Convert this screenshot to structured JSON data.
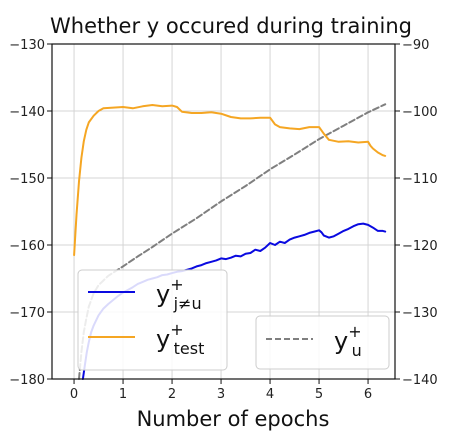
{
  "chart_data": {
    "type": "line",
    "title": "Whether y occured during training",
    "xlabel": "Number of epochs",
    "ylabel": "",
    "xlim": [
      -0.45,
      6.55
    ],
    "ylim_left": [
      -180,
      -130
    ],
    "ylim_right": [
      -140,
      -90
    ],
    "xticks": [
      0,
      1,
      2,
      3,
      4,
      5,
      6
    ],
    "yticks_left": [
      -180,
      -170,
      -160,
      -150,
      -140,
      -130
    ],
    "yticks_right": [
      -140,
      -130,
      -120,
      -110,
      -100,
      -90
    ],
    "grid": true,
    "colors": {
      "blue": "#0a0ae0",
      "orange": "#f5a623",
      "gray": "#7f7f7f"
    },
    "series": [
      {
        "name": "y_{j≠u}^+",
        "legend_main": "y",
        "legend_sub": "j≠u",
        "legend_sup": "+",
        "axis": "left",
        "style": "solid",
        "color": "#0a0ae0",
        "points": [
          [
            0.18,
            -180
          ],
          [
            0.22,
            -178
          ],
          [
            0.26,
            -176
          ],
          [
            0.3,
            -174.5
          ],
          [
            0.35,
            -173
          ],
          [
            0.4,
            -172
          ],
          [
            0.5,
            -170.5
          ],
          [
            0.6,
            -169.5
          ],
          [
            0.7,
            -168.8
          ],
          [
            0.8,
            -168.2
          ],
          [
            0.9,
            -167.6
          ],
          [
            1.0,
            -167.1
          ],
          [
            1.1,
            -166.7
          ],
          [
            1.2,
            -166.3
          ],
          [
            1.3,
            -165.8
          ],
          [
            1.4,
            -165.5
          ],
          [
            1.5,
            -165.2
          ],
          [
            1.6,
            -165.0
          ],
          [
            1.7,
            -164.8
          ],
          [
            1.8,
            -164.5
          ],
          [
            1.9,
            -164.4
          ],
          [
            2.0,
            -164.2
          ],
          [
            2.1,
            -164.0
          ],
          [
            2.2,
            -163.9
          ],
          [
            2.3,
            -163.7
          ],
          [
            2.4,
            -163.5
          ],
          [
            2.5,
            -163.2
          ],
          [
            2.6,
            -163.0
          ],
          [
            2.7,
            -162.7
          ],
          [
            2.8,
            -162.5
          ],
          [
            2.9,
            -162.3
          ],
          [
            3.0,
            -162.0
          ],
          [
            3.1,
            -162.1
          ],
          [
            3.2,
            -161.9
          ],
          [
            3.3,
            -161.6
          ],
          [
            3.4,
            -161.7
          ],
          [
            3.5,
            -161.3
          ],
          [
            3.6,
            -161.2
          ],
          [
            3.7,
            -160.7
          ],
          [
            3.8,
            -160.9
          ],
          [
            3.9,
            -160.4
          ],
          [
            4.0,
            -159.7
          ],
          [
            4.1,
            -160.0
          ],
          [
            4.2,
            -159.5
          ],
          [
            4.3,
            -159.7
          ],
          [
            4.4,
            -159.2
          ],
          [
            4.5,
            -158.9
          ],
          [
            4.6,
            -158.7
          ],
          [
            4.7,
            -158.5
          ],
          [
            4.8,
            -158.2
          ],
          [
            4.9,
            -158.0
          ],
          [
            5.0,
            -157.8
          ],
          [
            5.05,
            -158.1
          ],
          [
            5.1,
            -158.6
          ],
          [
            5.2,
            -158.9
          ],
          [
            5.3,
            -158.7
          ],
          [
            5.4,
            -158.3
          ],
          [
            5.5,
            -157.9
          ],
          [
            5.6,
            -157.6
          ],
          [
            5.7,
            -157.2
          ],
          [
            5.8,
            -156.9
          ],
          [
            5.9,
            -156.8
          ],
          [
            6.0,
            -157.0
          ],
          [
            6.1,
            -157.4
          ],
          [
            6.2,
            -157.9
          ],
          [
            6.3,
            -157.9
          ],
          [
            6.35,
            -158.0
          ]
        ]
      },
      {
        "name": "y_test^+",
        "legend_main": "y",
        "legend_sub": "test",
        "legend_sup": "+",
        "axis": "left",
        "style": "solid",
        "color": "#f5a623",
        "points": [
          [
            0.0,
            -161.5
          ],
          [
            0.05,
            -155.5
          ],
          [
            0.1,
            -150.5
          ],
          [
            0.15,
            -147
          ],
          [
            0.2,
            -144.5
          ],
          [
            0.25,
            -142.8
          ],
          [
            0.3,
            -141.7
          ],
          [
            0.4,
            -140.7
          ],
          [
            0.5,
            -140.0
          ],
          [
            0.6,
            -139.6
          ],
          [
            0.8,
            -139.5
          ],
          [
            1.0,
            -139.4
          ],
          [
            1.2,
            -139.6
          ],
          [
            1.4,
            -139.3
          ],
          [
            1.6,
            -139.1
          ],
          [
            1.8,
            -139.3
          ],
          [
            2.0,
            -139.2
          ],
          [
            2.1,
            -139.4
          ],
          [
            2.2,
            -140.1
          ],
          [
            2.4,
            -140.3
          ],
          [
            2.6,
            -140.3
          ],
          [
            2.8,
            -140.2
          ],
          [
            3.0,
            -140.4
          ],
          [
            3.2,
            -140.9
          ],
          [
            3.4,
            -141.1
          ],
          [
            3.6,
            -141.1
          ],
          [
            3.8,
            -141.0
          ],
          [
            4.0,
            -141.0
          ],
          [
            4.1,
            -142.0
          ],
          [
            4.2,
            -142.4
          ],
          [
            4.4,
            -142.6
          ],
          [
            4.6,
            -142.7
          ],
          [
            4.8,
            -142.4
          ],
          [
            5.0,
            -142.4
          ],
          [
            5.1,
            -143.4
          ],
          [
            5.2,
            -144.3
          ],
          [
            5.4,
            -144.6
          ],
          [
            5.6,
            -144.5
          ],
          [
            5.8,
            -144.7
          ],
          [
            6.0,
            -144.6
          ],
          [
            6.05,
            -145.2
          ],
          [
            6.1,
            -145.6
          ],
          [
            6.2,
            -146.2
          ],
          [
            6.3,
            -146.6
          ],
          [
            6.35,
            -146.7
          ]
        ]
      },
      {
        "name": "y_u^+",
        "legend_main": "y",
        "legend_sub": "u",
        "legend_sup": "+",
        "axis": "right",
        "style": "dashed",
        "color": "#7f7f7f",
        "points": [
          [
            0.1,
            -140
          ],
          [
            0.15,
            -136
          ],
          [
            0.2,
            -133
          ],
          [
            0.25,
            -131
          ],
          [
            0.3,
            -129.2
          ],
          [
            0.4,
            -127.2
          ],
          [
            0.5,
            -126.0
          ],
          [
            0.7,
            -124.6
          ],
          [
            1.0,
            -123.2
          ],
          [
            1.3,
            -121.7
          ],
          [
            1.6,
            -120.3
          ],
          [
            2.0,
            -118.3
          ],
          [
            2.5,
            -116.0
          ],
          [
            3.0,
            -113.5
          ],
          [
            3.5,
            -111.2
          ],
          [
            4.0,
            -108.7
          ],
          [
            4.5,
            -106.5
          ],
          [
            5.0,
            -104.2
          ],
          [
            5.5,
            -102.2
          ],
          [
            6.0,
            -100.2
          ],
          [
            6.35,
            -99.0
          ]
        ]
      }
    ],
    "legend": [
      {
        "position": "lower-left",
        "entries": [
          0,
          1
        ]
      },
      {
        "position": "lower-right",
        "entries": [
          2
        ]
      }
    ]
  }
}
